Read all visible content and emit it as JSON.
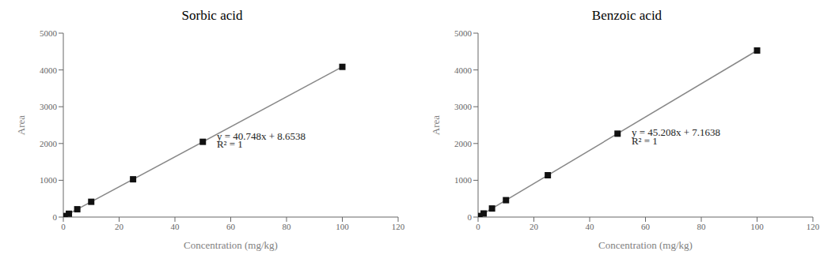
{
  "chart_data": [
    {
      "type": "scatter",
      "title": "Sorbic acid",
      "x_label": "Concentration (mg/kg)",
      "y_label": "Area",
      "xlim": [
        0,
        120
      ],
      "ylim": [
        0,
        5000
      ],
      "xticks": [
        0,
        20,
        40,
        60,
        80,
        100,
        120
      ],
      "yticks": [
        0,
        1000,
        2000,
        3000,
        4000,
        5000
      ],
      "grid": false,
      "series": [
        {
          "type": "line",
          "color": "#888888",
          "x": [
            0,
            100
          ],
          "values": [
            8.6538,
            4083.4338
          ]
        },
        {
          "type": "scatter",
          "color": "#111111",
          "marker": "square",
          "x": [
            0.5,
            2,
            5,
            10,
            25,
            50,
            100
          ],
          "values": [
            29.03,
            90.15,
            212.48,
            415.33,
            1027.03,
            2045.9,
            4083.33
          ]
        }
      ],
      "annotations": [
        {
          "text": "y = 40.748x + 8.6538",
          "x": 55,
          "y": 2100
        },
        {
          "text": "R² = 1",
          "x": 55,
          "y": 1880
        }
      ]
    },
    {
      "type": "scatter",
      "title": "Benzoic acid",
      "x_label": "Concentration (mg/kg)",
      "y_label": "Area",
      "xlim": [
        0,
        120
      ],
      "ylim": [
        0,
        5000
      ],
      "xticks": [
        0,
        20,
        40,
        60,
        80,
        100,
        120
      ],
      "yticks": [
        0,
        1000,
        2000,
        3000,
        4000,
        5000
      ],
      "grid": false,
      "series": [
        {
          "type": "line",
          "color": "#888888",
          "x": [
            0,
            100
          ],
          "values": [
            7.1638,
            4527.9638
          ]
        },
        {
          "type": "scatter",
          "color": "#111111",
          "marker": "square",
          "x": [
            0.5,
            2,
            5,
            10,
            25,
            50,
            100
          ],
          "values": [
            29.77,
            97.59,
            233.2,
            459.24,
            1137.36,
            2267.57,
            4527.97
          ]
        }
      ],
      "annotations": [
        {
          "text": "y = 45.208x + 7.1638",
          "x": 55,
          "y": 2200
        },
        {
          "text": "R² = 1",
          "x": 55,
          "y": 1980
        }
      ]
    }
  ]
}
